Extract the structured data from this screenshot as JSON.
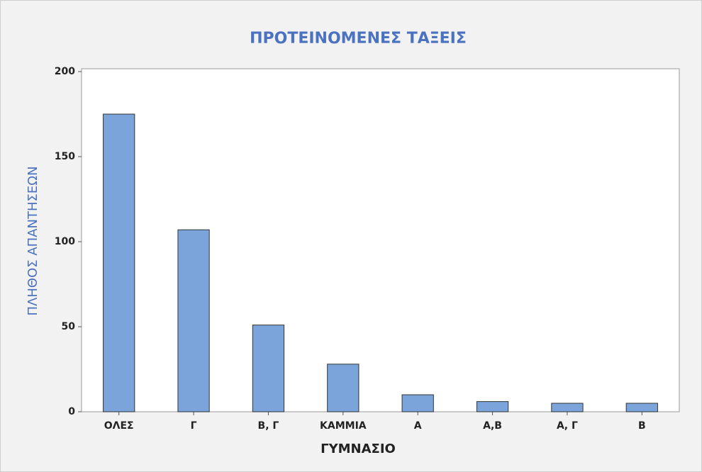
{
  "chart_data": {
    "type": "bar",
    "title": "ΠΡΟΤΕΙΝΟΜΕΝΕΣ ΤΑΞΕΙΣ",
    "x_label": "ΓΥΜΝΑΣΙΟ",
    "y_label": "ΠΛΗΘΟΣ ΑΠΑΝΤΗΣΕΩΝ",
    "categories": [
      "ΟΛΕΣ",
      "Γ",
      "Β, Γ",
      "ΚΑΜΜΙΑ",
      "Α",
      "Α,Β",
      "Α, Γ",
      "Β"
    ],
    "values": [
      175,
      107,
      51,
      28,
      10,
      6,
      5,
      5
    ],
    "color": "#7ba5da",
    "ylim": [
      0,
      200
    ],
    "yticks": [
      0,
      50,
      100,
      150,
      200
    ],
    "grid": false
  }
}
